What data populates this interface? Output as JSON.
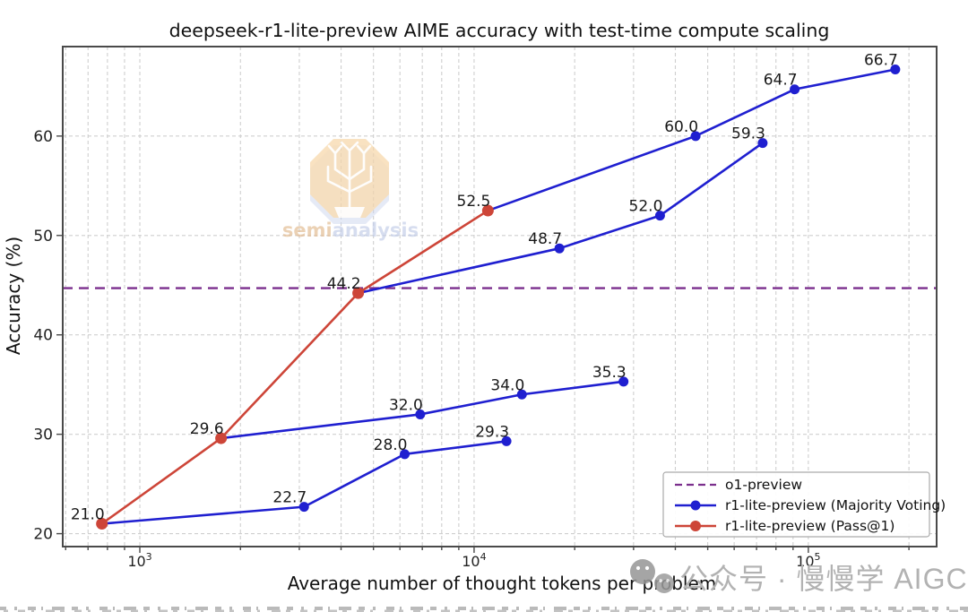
{
  "chart_data": {
    "type": "line",
    "title": "deepseek-r1-lite-preview AIME accuracy with test-time compute scaling",
    "xlabel": "Average number of thought tokens per problem",
    "ylabel": "Accuracy (%)",
    "x_scale": "log",
    "xlim": [
      588,
      242000
    ],
    "ylim": [
      18.7,
      69.0
    ],
    "y_ticks": [
      20,
      30,
      40,
      50,
      60
    ],
    "y_tick_labels": [
      "20",
      "30",
      "40",
      "50",
      "60"
    ],
    "x_tick_exponents": [
      3,
      4,
      5
    ],
    "grid": "both-x-major-y-dashed",
    "hline": {
      "label": "o1-preview",
      "value": 44.7,
      "color": "#7b2f8d",
      "style": "dashed"
    },
    "series": [
      {
        "name": "r1-lite-preview (Majority Voting)",
        "color": "#1f1fd0",
        "marker": "circle",
        "segments": [
          {
            "x": [
              770,
              3100,
              6200,
              12500
            ],
            "y": [
              21.0,
              22.7,
              28.0,
              29.3
            ],
            "labels": [
              null,
              "22.7",
              "28.0",
              "29.3"
            ]
          },
          {
            "x": [
              1750,
              6900,
              13900,
              28000
            ],
            "y": [
              29.6,
              32.0,
              34.0,
              35.3
            ],
            "labels": [
              null,
              "32.0",
              "34.0",
              "35.3"
            ]
          },
          {
            "x": [
              4500,
              18000,
              36000,
              73000
            ],
            "y": [
              44.2,
              48.7,
              52.0,
              59.3
            ],
            "labels": [
              null,
              "48.7",
              "52.0",
              "59.3"
            ]
          },
          {
            "x": [
              11000,
              46000,
              91000,
              182000
            ],
            "y": [
              52.5,
              60.0,
              64.7,
              66.7
            ],
            "labels": [
              null,
              "60.0",
              "64.7",
              "66.7"
            ]
          }
        ]
      },
      {
        "name": "r1-lite-preview (Pass@1)",
        "color": "#cd4538",
        "marker": "circle",
        "x": [
          770,
          1750,
          4500,
          11000
        ],
        "y": [
          21.0,
          29.6,
          44.2,
          52.5
        ],
        "labels": [
          "21.0",
          "29.6",
          "44.2",
          "52.5"
        ]
      }
    ],
    "legend": {
      "position": "lower-right",
      "entries": [
        {
          "label": "o1-preview"
        },
        {
          "label": "r1-lite-preview (Majority Voting)"
        },
        {
          "label": "r1-lite-preview (Pass@1)"
        }
      ]
    }
  },
  "watermarks": {
    "logo_text": "semianalysis",
    "logo_text_left": "semi",
    "logo_text_right": "analysis",
    "bottom_text": "公众号 · 慢慢学 AIGC",
    "bottom_icon": "wechat-icon"
  },
  "colors": {
    "grid": "#cfcfcf",
    "spine": "#4a4a4a",
    "label_text": "#191919",
    "watermark_gray": "#b2b2b2",
    "logo_fill": "#f6d5a5",
    "logo_shadow": "#c9d4ef"
  }
}
